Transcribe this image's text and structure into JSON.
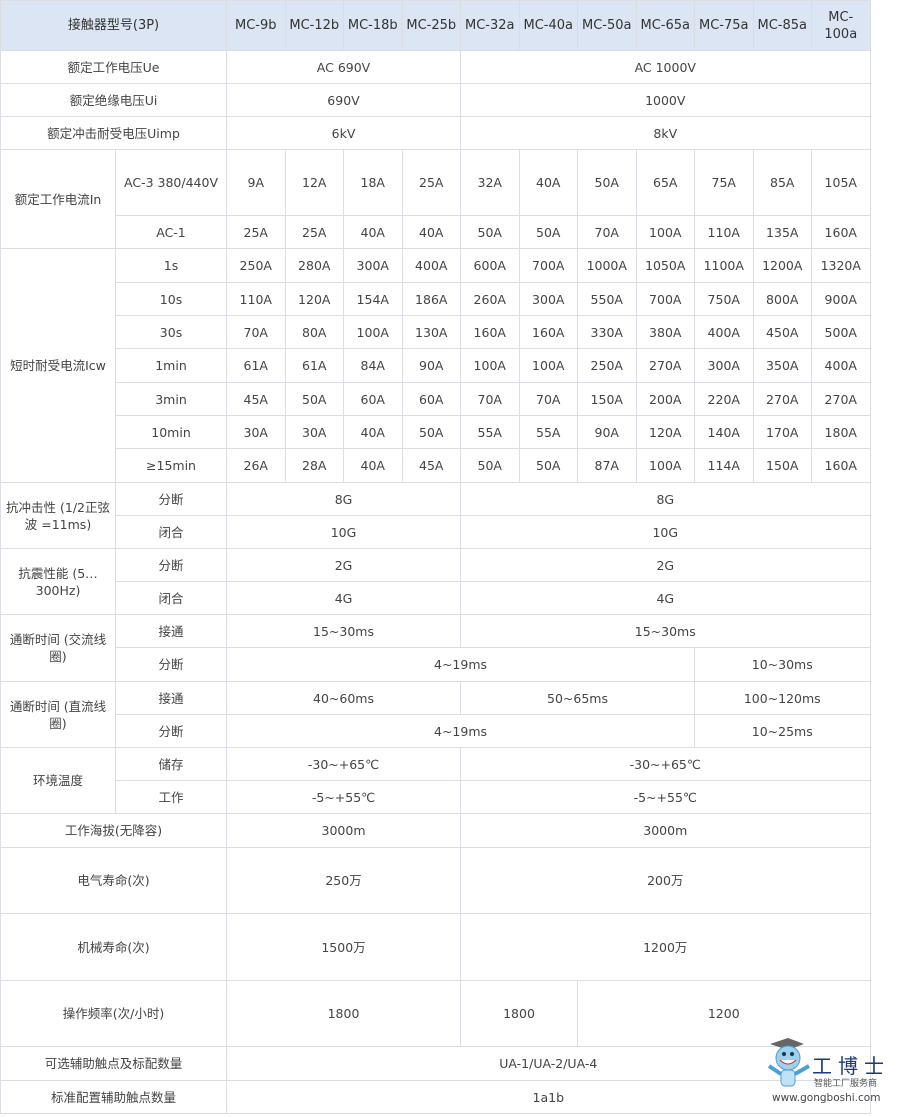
{
  "colors": {
    "header_bg": "#dbe5f4",
    "border": "#dadde3",
    "text": "#444444"
  },
  "rows": [
    {
      "h": 50,
      "head": true,
      "cells": [
        {
          "t": "接触器型号(3P)",
          "cs": 2
        },
        {
          "t": "MC-9b"
        },
        {
          "t": "MC-12b"
        },
        {
          "t": "MC-18b"
        },
        {
          "t": "MC-25b"
        },
        {
          "t": "MC-32a"
        },
        {
          "t": "MC-40a"
        },
        {
          "t": "MC-50a"
        },
        {
          "t": "MC-65a"
        },
        {
          "t": "MC-75a"
        },
        {
          "t": "MC-85a"
        },
        {
          "t": "MC-100a"
        }
      ]
    },
    {
      "h": 33,
      "cells": [
        {
          "t": "额定工作电压Ue",
          "cs": 2
        },
        {
          "t": "AC 690V",
          "cs": 4
        },
        {
          "t": "AC 1000V",
          "cs": 7
        }
      ]
    },
    {
      "h": 33,
      "cells": [
        {
          "t": "额定绝缘电压Ui",
          "cs": 2
        },
        {
          "t": "690V",
          "cs": 4
        },
        {
          "t": "1000V",
          "cs": 7
        }
      ]
    },
    {
      "h": 33,
      "cells": [
        {
          "t": "额定冲击耐受电压Uimp",
          "cs": 2
        },
        {
          "t": "6kV",
          "cs": 4
        },
        {
          "t": "8kV",
          "cs": 7
        }
      ]
    },
    {
      "h": 66,
      "cells": [
        {
          "t": "额定工作电流In",
          "rs": 2
        },
        {
          "t": "AC-3 380/440V"
        },
        {
          "t": "9A"
        },
        {
          "t": "12A"
        },
        {
          "t": "18A"
        },
        {
          "t": "25A"
        },
        {
          "t": "32A"
        },
        {
          "t": "40A"
        },
        {
          "t": "50A"
        },
        {
          "t": "65A"
        },
        {
          "t": "75A"
        },
        {
          "t": "85A"
        },
        {
          "t": "105A"
        }
      ]
    },
    {
      "h": 33,
      "cells": [
        {
          "t": "AC-1"
        },
        {
          "t": "25A"
        },
        {
          "t": "25A"
        },
        {
          "t": "40A"
        },
        {
          "t": "40A"
        },
        {
          "t": "50A"
        },
        {
          "t": "50A"
        },
        {
          "t": "70A"
        },
        {
          "t": "100A"
        },
        {
          "t": "110A"
        },
        {
          "t": "135A"
        },
        {
          "t": "160A"
        }
      ]
    },
    {
      "h": 34,
      "cells": [
        {
          "t": "短时耐受电流Icw",
          "rs": 7
        },
        {
          "t": "1s"
        },
        {
          "t": "250A"
        },
        {
          "t": "280A"
        },
        {
          "t": "300A"
        },
        {
          "t": "400A"
        },
        {
          "t": "600A"
        },
        {
          "t": "700A"
        },
        {
          "t": "1000A"
        },
        {
          "t": "1050A"
        },
        {
          "t": "1100A"
        },
        {
          "t": "1200A"
        },
        {
          "t": "1320A"
        }
      ]
    },
    {
      "h": 33,
      "cells": [
        {
          "t": "10s"
        },
        {
          "t": "110A"
        },
        {
          "t": "120A"
        },
        {
          "t": "154A"
        },
        {
          "t": "186A"
        },
        {
          "t": "260A"
        },
        {
          "t": "300A"
        },
        {
          "t": "550A"
        },
        {
          "t": "700A"
        },
        {
          "t": "750A"
        },
        {
          "t": "800A"
        },
        {
          "t": "900A"
        }
      ]
    },
    {
      "h": 33,
      "cells": [
        {
          "t": "30s"
        },
        {
          "t": "70A"
        },
        {
          "t": "80A"
        },
        {
          "t": "100A"
        },
        {
          "t": "130A"
        },
        {
          "t": "160A"
        },
        {
          "t": "160A"
        },
        {
          "t": "330A"
        },
        {
          "t": "380A"
        },
        {
          "t": "400A"
        },
        {
          "t": "450A"
        },
        {
          "t": "500A"
        }
      ]
    },
    {
      "h": 34,
      "cells": [
        {
          "t": "1min"
        },
        {
          "t": "61A"
        },
        {
          "t": "61A"
        },
        {
          "t": "84A"
        },
        {
          "t": "90A"
        },
        {
          "t": "100A"
        },
        {
          "t": "100A"
        },
        {
          "t": "250A"
        },
        {
          "t": "270A"
        },
        {
          "t": "300A"
        },
        {
          "t": "350A"
        },
        {
          "t": "400A"
        }
      ]
    },
    {
      "h": 33,
      "cells": [
        {
          "t": "3min"
        },
        {
          "t": "45A"
        },
        {
          "t": "50A"
        },
        {
          "t": "60A"
        },
        {
          "t": "60A"
        },
        {
          "t": "70A"
        },
        {
          "t": "70A"
        },
        {
          "t": "150A"
        },
        {
          "t": "200A"
        },
        {
          "t": "220A"
        },
        {
          "t": "270A"
        },
        {
          "t": "270A"
        }
      ]
    },
    {
      "h": 33,
      "cells": [
        {
          "t": "10min"
        },
        {
          "t": "30A"
        },
        {
          "t": "30A"
        },
        {
          "t": "40A"
        },
        {
          "t": "50A"
        },
        {
          "t": "55A"
        },
        {
          "t": "55A"
        },
        {
          "t": "90A"
        },
        {
          "t": "120A"
        },
        {
          "t": "140A"
        },
        {
          "t": "170A"
        },
        {
          "t": "180A"
        }
      ]
    },
    {
      "h": 34,
      "cells": [
        {
          "t": "≥15min"
        },
        {
          "t": "26A"
        },
        {
          "t": "28A"
        },
        {
          "t": "40A"
        },
        {
          "t": "45A"
        },
        {
          "t": "50A"
        },
        {
          "t": "50A"
        },
        {
          "t": "87A"
        },
        {
          "t": "100A"
        },
        {
          "t": "114A"
        },
        {
          "t": "150A"
        },
        {
          "t": "160A"
        }
      ]
    },
    {
      "h": 33,
      "cells": [
        {
          "t": "抗冲击性 (1/2正弦波 =11ms)",
          "rs": 2
        },
        {
          "t": "分断"
        },
        {
          "t": "8G",
          "cs": 4
        },
        {
          "t": "8G",
          "cs": 7
        }
      ]
    },
    {
      "h": 33,
      "cells": [
        {
          "t": "闭合"
        },
        {
          "t": "10G",
          "cs": 4
        },
        {
          "t": "10G",
          "cs": 7
        }
      ]
    },
    {
      "h": 33,
      "cells": [
        {
          "t": "抗震性能 (5…300Hz)",
          "rs": 2
        },
        {
          "t": "分断"
        },
        {
          "t": "2G",
          "cs": 4
        },
        {
          "t": "2G",
          "cs": 7
        }
      ]
    },
    {
      "h": 33,
      "cells": [
        {
          "t": "闭合"
        },
        {
          "t": "4G",
          "cs": 4
        },
        {
          "t": "4G",
          "cs": 7
        }
      ]
    },
    {
      "h": 33,
      "cells": [
        {
          "t": "通断时间 (交流线圈)",
          "rs": 2
        },
        {
          "t": "接通"
        },
        {
          "t": "15~30ms",
          "cs": 4
        },
        {
          "t": "15~30ms",
          "cs": 7
        }
      ]
    },
    {
      "h": 34,
      "cells": [
        {
          "t": "分断"
        },
        {
          "t": "4~19ms",
          "cs": 8
        },
        {
          "t": "10~30ms",
          "cs": 3
        }
      ]
    },
    {
      "h": 33,
      "cells": [
        {
          "t": "通断时间 (直流线圈)",
          "rs": 2
        },
        {
          "t": "接通"
        },
        {
          "t": "40~60ms",
          "cs": 4
        },
        {
          "t": "50~65ms",
          "cs": 4
        },
        {
          "t": "100~120ms",
          "cs": 3
        }
      ]
    },
    {
      "h": 33,
      "cells": [
        {
          "t": "分断"
        },
        {
          "t": "4~19ms",
          "cs": 8
        },
        {
          "t": "10~25ms",
          "cs": 3
        }
      ]
    },
    {
      "h": 33,
      "cells": [
        {
          "t": "环境温度",
          "rs": 2
        },
        {
          "t": "储存"
        },
        {
          "t": "-30~+65℃",
          "cs": 4
        },
        {
          "t": "-30~+65℃",
          "cs": 7
        }
      ]
    },
    {
      "h": 33,
      "cells": [
        {
          "t": "工作"
        },
        {
          "t": "-5~+55℃",
          "cs": 4
        },
        {
          "t": "-5~+55℃",
          "cs": 7
        }
      ]
    },
    {
      "h": 34,
      "cells": [
        {
          "t": "工作海拔(无降容)",
          "cs": 2
        },
        {
          "t": "3000m",
          "cs": 4
        },
        {
          "t": "3000m",
          "cs": 7
        }
      ]
    },
    {
      "h": 66,
      "cells": [
        {
          "t": "电气寿命(次)",
          "cs": 2
        },
        {
          "t": "250万",
          "cs": 4
        },
        {
          "t": "200万",
          "cs": 7
        }
      ]
    },
    {
      "h": 67,
      "cells": [
        {
          "t": "机械寿命(次)",
          "cs": 2
        },
        {
          "t": "1500万",
          "cs": 4
        },
        {
          "t": "1200万",
          "cs": 7
        }
      ]
    },
    {
      "h": 66,
      "cells": [
        {
          "t": "操作频率(次/小时)",
          "cs": 2
        },
        {
          "t": "1800",
          "cs": 4
        },
        {
          "t": "1800",
          "cs": 2
        },
        {
          "t": "1200",
          "cs": 5
        }
      ]
    },
    {
      "h": 34,
      "cells": [
        {
          "t": "可选辅助触点及标配数量",
          "cs": 2
        },
        {
          "t": "UA-1/UA-2/UA-4",
          "cs": 11
        }
      ]
    },
    {
      "h": 33,
      "cells": [
        {
          "t": "标准配置辅助触点数量",
          "cs": 2
        },
        {
          "t": "1a1b",
          "cs": 11
        }
      ]
    }
  ],
  "watermark": {
    "name": "工博士",
    "tagline": "智能工厂服务商",
    "url": "www.gongboshi.com"
  }
}
